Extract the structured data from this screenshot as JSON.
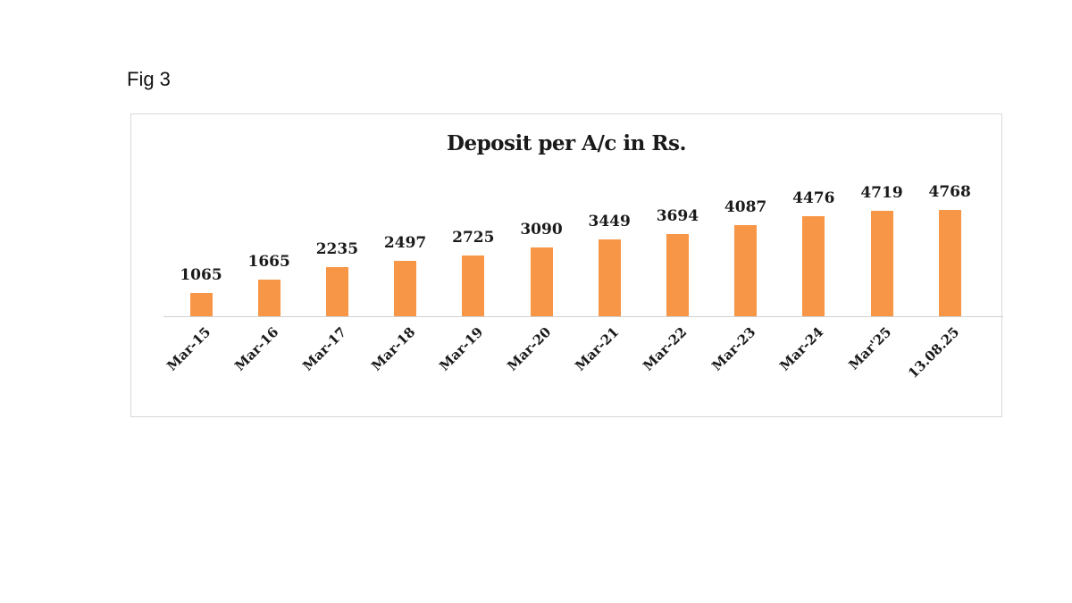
{
  "figure": {
    "label": "Fig 3"
  },
  "chart": {
    "title": "Deposit per A/c in Rs.",
    "bar_color": "#f79646"
  },
  "chart_data": {
    "type": "bar",
    "title": "Deposit per A/c in Rs.",
    "xlabel": "",
    "ylabel": "",
    "categories": [
      "Mar-15",
      "Mar-16",
      "Mar-17",
      "Mar-18",
      "Mar-19",
      "Mar-20",
      "Mar-21",
      "Mar-22",
      "Mar-23",
      "Mar-24",
      "Mar'25",
      "13.08.25"
    ],
    "values": [
      1065,
      1665,
      2235,
      2497,
      2725,
      3090,
      3449,
      3694,
      4087,
      4476,
      4719,
      4768
    ],
    "data_labels": true,
    "grid": false,
    "legend": "none",
    "series": [
      {
        "name": "Deposit per A/c in Rs.",
        "values": [
          1065,
          1665,
          2235,
          2497,
          2725,
          3090,
          3449,
          3694,
          4087,
          4476,
          4719,
          4768
        ]
      }
    ]
  }
}
